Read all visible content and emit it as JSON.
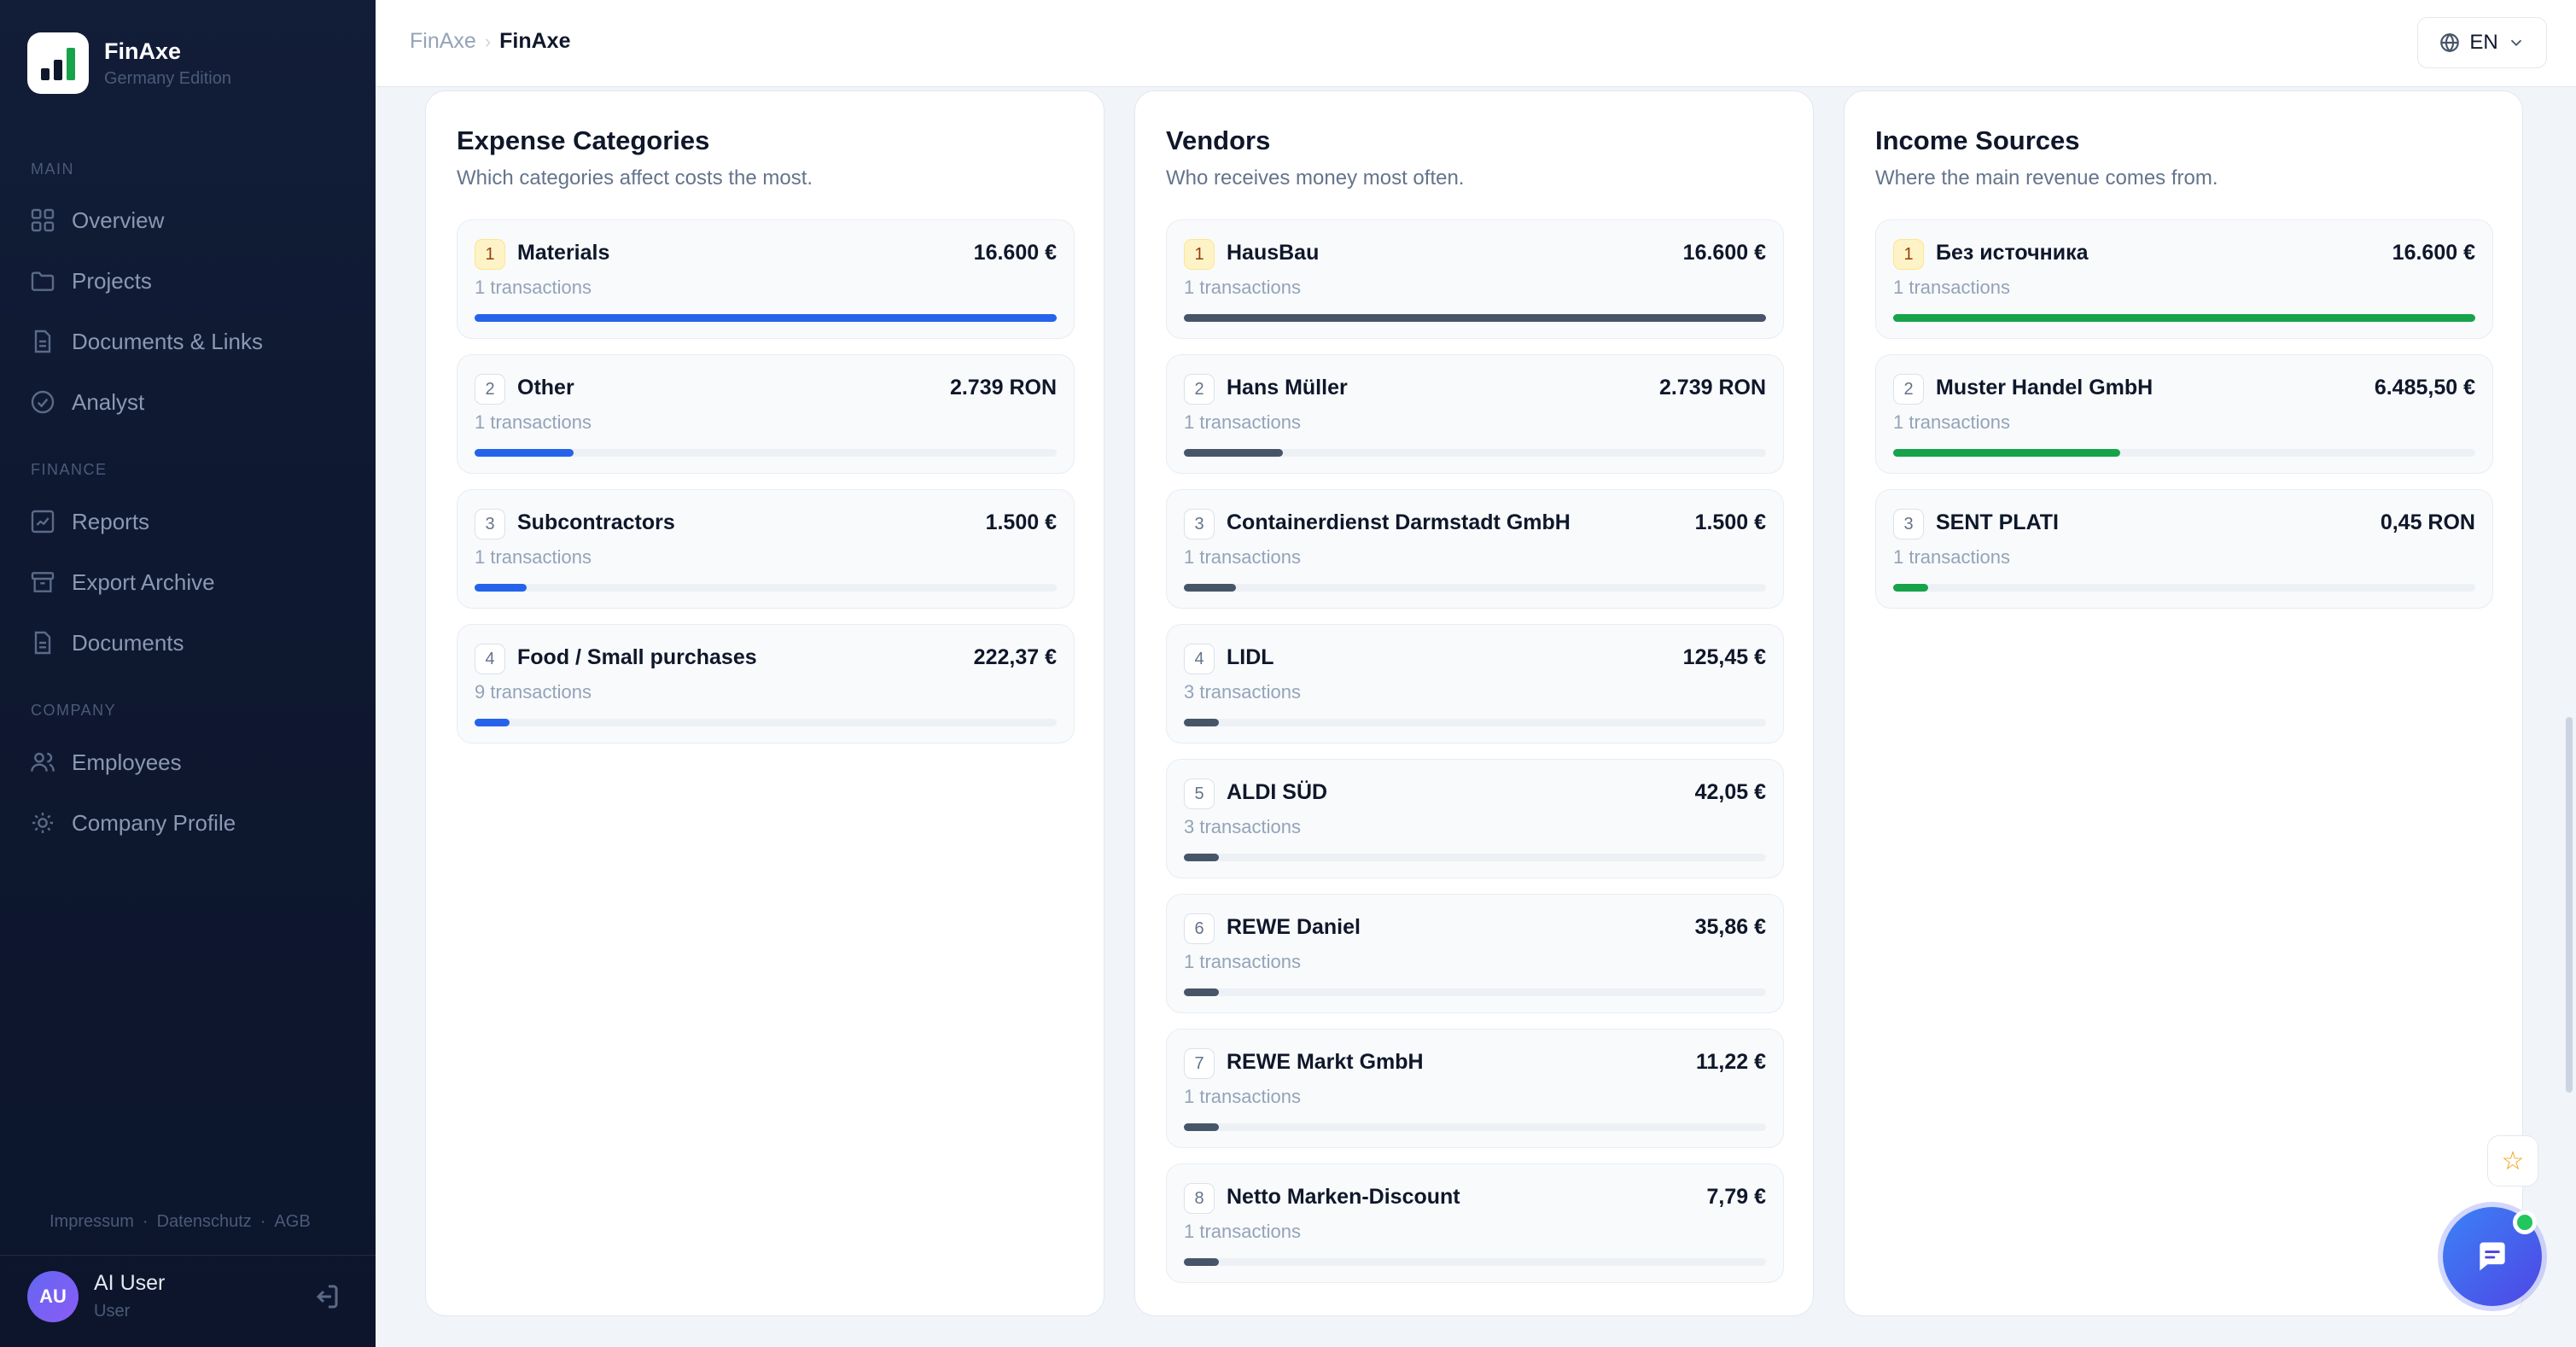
{
  "app": {
    "name": "FinAxe",
    "edition": "Germany Edition"
  },
  "nav": {
    "sections": [
      {
        "title": "MAIN",
        "items": [
          {
            "label": "Overview",
            "icon": "grid-icon"
          },
          {
            "label": "Projects",
            "icon": "folder-icon"
          },
          {
            "label": "Documents & Links",
            "icon": "document-icon"
          },
          {
            "label": "Analyst",
            "icon": "check-circle-icon"
          }
        ]
      },
      {
        "title": "FINANCE",
        "items": [
          {
            "label": "Reports",
            "icon": "chart-icon"
          },
          {
            "label": "Export Archive",
            "icon": "archive-icon"
          },
          {
            "label": "Documents",
            "icon": "document-icon"
          }
        ]
      },
      {
        "title": "COMPANY",
        "items": [
          {
            "label": "Employees",
            "icon": "users-icon"
          },
          {
            "label": "Company Profile",
            "icon": "sun-icon"
          }
        ]
      }
    ],
    "footer_links": [
      "Impressum",
      "Datenschutz",
      "AGB"
    ],
    "footer_separator": "·"
  },
  "user": {
    "initials": "AU",
    "name": "AI User",
    "role": "User"
  },
  "header": {
    "breadcrumb_root": "FinAxe",
    "breadcrumb_separator": "›",
    "breadcrumb_current": "FinAxe",
    "language": "EN"
  },
  "cards": [
    {
      "title": "Expense Categories",
      "subtitle": "Which categories affect costs the most.",
      "bar_color": "#2563eb",
      "rows": [
        {
          "rank": "1",
          "name": "Materials",
          "amount": "16.600 €",
          "transactions": "1 transactions",
          "share": 1.0
        },
        {
          "rank": "2",
          "name": "Other",
          "amount": "2.739 RON",
          "transactions": "1 transactions",
          "share": 0.17
        },
        {
          "rank": "3",
          "name": "Subcontractors",
          "amount": "1.500 €",
          "transactions": "1 transactions",
          "share": 0.09
        },
        {
          "rank": "4",
          "name": "Food / Small purchases",
          "amount": "222,37 €",
          "transactions": "9 transactions",
          "share": 0.06
        }
      ]
    },
    {
      "title": "Vendors",
      "subtitle": "Who receives money most often.",
      "bar_color": "#475569",
      "rows": [
        {
          "rank": "1",
          "name": "HausBau",
          "amount": "16.600 €",
          "transactions": "1 transactions",
          "share": 1.0
        },
        {
          "rank": "2",
          "name": "Hans Müller",
          "amount": "2.739 RON",
          "transactions": "1 transactions",
          "share": 0.17
        },
        {
          "rank": "3",
          "name": "Containerdienst Darmstadt GmbH",
          "amount": "1.500 €",
          "transactions": "1 transactions",
          "share": 0.09
        },
        {
          "rank": "4",
          "name": "LIDL",
          "amount": "125,45 €",
          "transactions": "3 transactions",
          "share": 0.06
        },
        {
          "rank": "5",
          "name": "ALDI SÜD",
          "amount": "42,05 €",
          "transactions": "3 transactions",
          "share": 0.06
        },
        {
          "rank": "6",
          "name": "REWE Daniel",
          "amount": "35,86 €",
          "transactions": "1 transactions",
          "share": 0.06
        },
        {
          "rank": "7",
          "name": "REWE Markt GmbH",
          "amount": "11,22 €",
          "transactions": "1 transactions",
          "share": 0.06
        },
        {
          "rank": "8",
          "name": "Netto Marken-Discount",
          "amount": "7,79 €",
          "transactions": "1 transactions",
          "share": 0.06
        }
      ]
    },
    {
      "title": "Income Sources",
      "subtitle": "Where the main revenue comes from.",
      "bar_color": "#16a34a",
      "rows": [
        {
          "rank": "1",
          "name": "Без источника",
          "amount": "16.600 €",
          "transactions": "1 transactions",
          "share": 1.0
        },
        {
          "rank": "2",
          "name": "Muster Handel GmbH",
          "amount": "6.485,50 €",
          "transactions": "1 transactions",
          "share": 0.39
        },
        {
          "rank": "3",
          "name": "SENT PLATI",
          "amount": "0,45 RON",
          "transactions": "1 transactions",
          "share": 0.06
        }
      ]
    }
  ],
  "floating": {
    "star_icon": "star-icon",
    "chat_icon": "chat-icon"
  }
}
